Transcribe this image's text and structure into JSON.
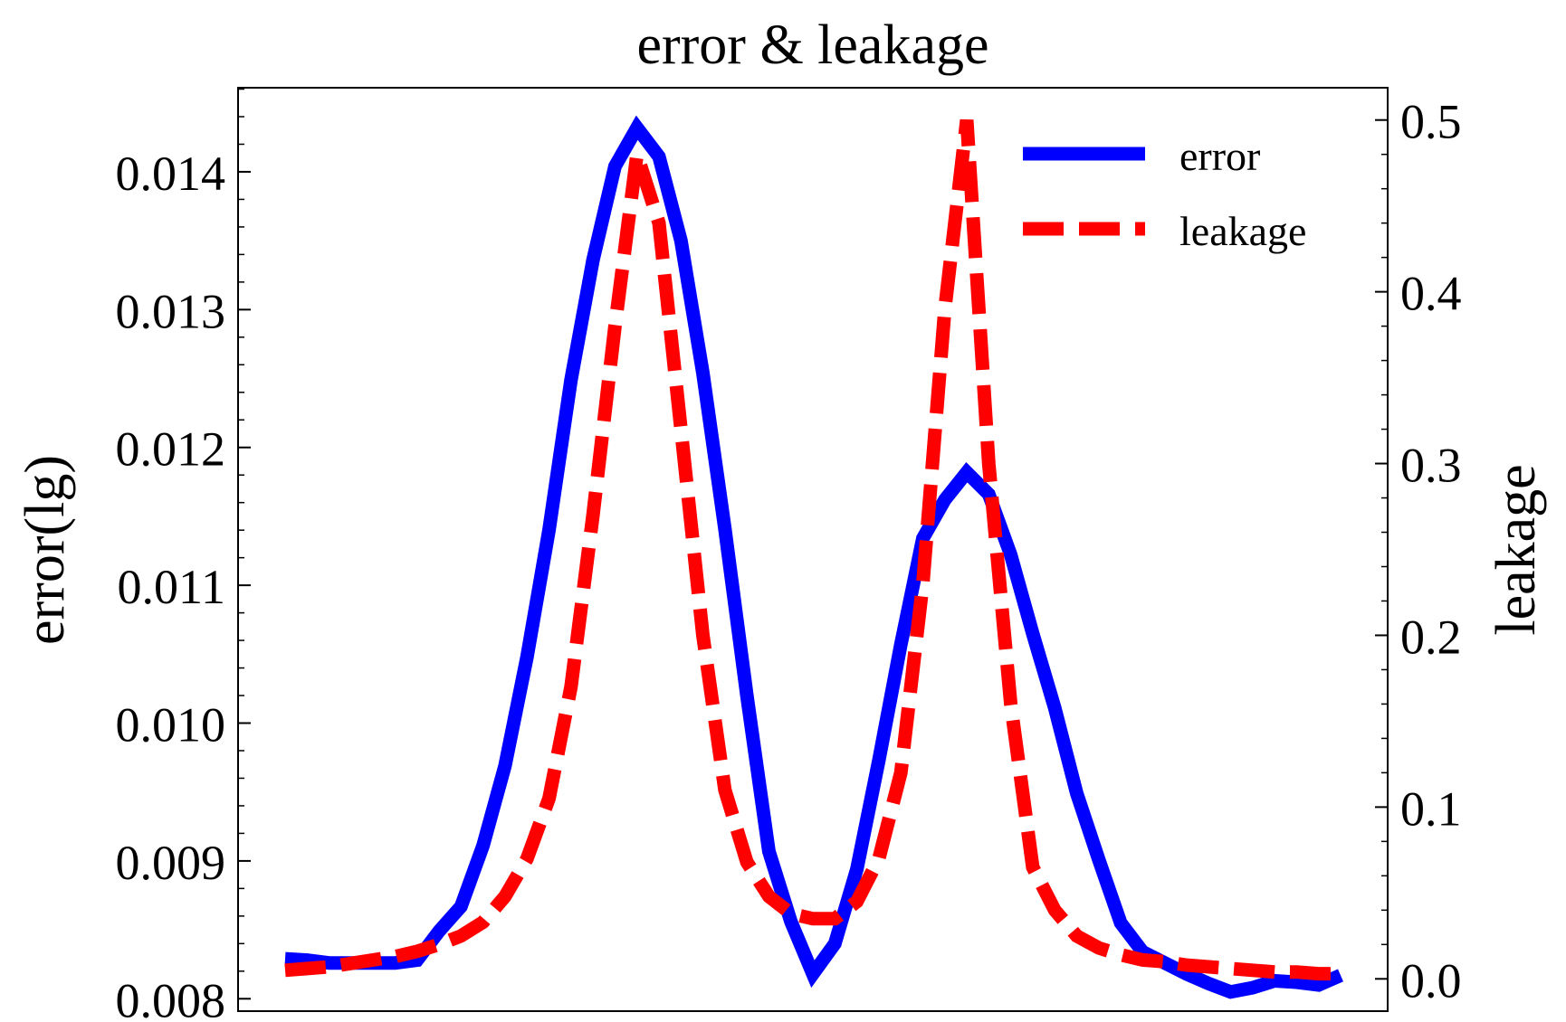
{
  "chart_data": {
    "type": "line",
    "title": "error & leakage",
    "ylabel_left": "error(lg)",
    "ylabel_right": "leakage",
    "xlabel": "",
    "ylim_left": [
      0.00791,
      0.01461
    ],
    "ylim_right": [
      -0.0188,
      0.5188
    ],
    "yticks_left": [
      "0.008",
      "0.009",
      "0.010",
      "0.011",
      "0.012",
      "0.013",
      "0.014"
    ],
    "yticks_left_values": [
      0.008,
      0.009,
      0.01,
      0.011,
      0.012,
      0.013,
      0.014
    ],
    "yticks_right": [
      "0.0",
      "0.1",
      "0.2",
      "0.3",
      "0.4",
      "0.5"
    ],
    "yticks_right_values": [
      0.0,
      0.1,
      0.2,
      0.3,
      0.4,
      0.5
    ],
    "grid": false,
    "legend_position": "top-right",
    "x": [
      0,
      1,
      2,
      3,
      4,
      5,
      6,
      7,
      8,
      9,
      10,
      11,
      12,
      13,
      14,
      15,
      16,
      17,
      18,
      19,
      20,
      21,
      22,
      23,
      24,
      25,
      26,
      27,
      28,
      29,
      30,
      31,
      32,
      33,
      34,
      35,
      36,
      37,
      38,
      39,
      40,
      41,
      42,
      43,
      44,
      45,
      46,
      47,
      48
    ],
    "series": [
      {
        "name": "error",
        "axis": "left",
        "color": "#0000ff",
        "style": "solid",
        "values": [
          0.00829,
          0.00828,
          0.00826,
          0.00826,
          0.00826,
          0.00826,
          0.00828,
          0.00849,
          0.00867,
          0.00911,
          0.00969,
          0.01048,
          0.0114,
          0.01249,
          0.01336,
          0.01404,
          0.01432,
          0.01411,
          0.0135,
          0.01254,
          0.01141,
          0.0102,
          0.00907,
          0.00856,
          0.00818,
          0.0084,
          0.00894,
          0.00973,
          0.01057,
          0.01134,
          0.01162,
          0.01182,
          0.01166,
          0.01122,
          0.01065,
          0.01011,
          0.00949,
          0.00901,
          0.00855,
          0.00834,
          0.00826,
          0.00818,
          0.00811,
          0.00805,
          0.00808,
          0.00813,
          0.00812,
          0.0081,
          0.00817
        ]
      },
      {
        "name": "leakage",
        "axis": "right",
        "color": "#ff0000",
        "style": "dashed",
        "values": [
          0.005,
          0.006,
          0.007,
          0.009,
          0.011,
          0.013,
          0.016,
          0.02,
          0.025,
          0.033,
          0.048,
          0.07,
          0.105,
          0.17,
          0.27,
          0.38,
          0.48,
          0.44,
          0.32,
          0.2,
          0.11,
          0.068,
          0.048,
          0.038,
          0.035,
          0.035,
          0.045,
          0.07,
          0.12,
          0.23,
          0.39,
          0.5,
          0.3,
          0.16,
          0.065,
          0.04,
          0.025,
          0.018,
          0.014,
          0.011,
          0.01,
          0.008,
          0.007,
          0.006,
          0.005,
          0.004,
          0.004,
          0.003,
          0.003
        ]
      }
    ]
  }
}
